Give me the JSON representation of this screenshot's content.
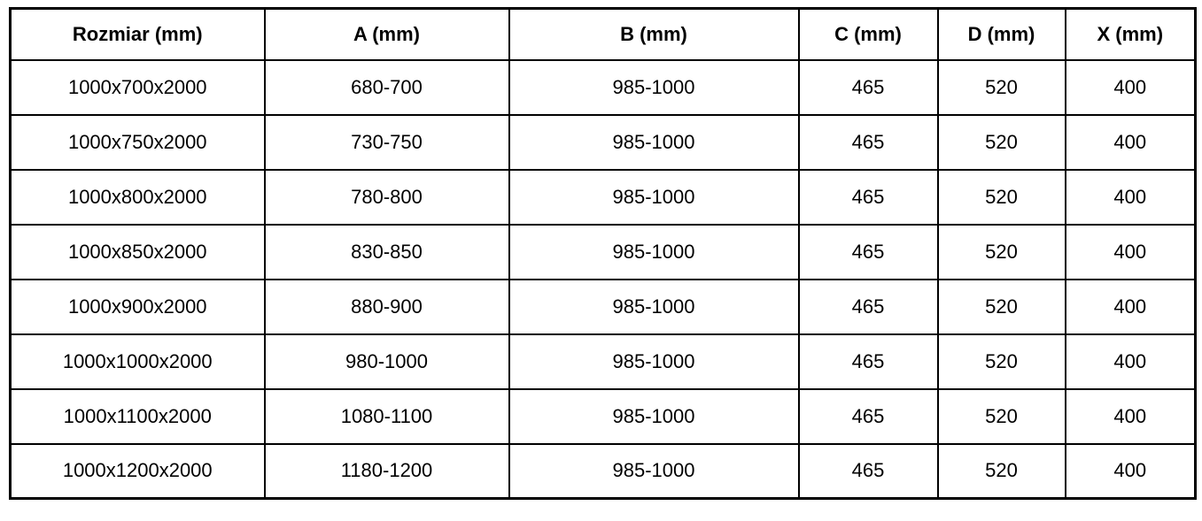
{
  "table": {
    "columns": [
      "Rozmiar (mm)",
      "A (mm)",
      "B (mm)",
      "C (mm)",
      "D (mm)",
      "X (mm)"
    ],
    "rows": [
      [
        "1000x700x2000",
        "680-700",
        "985-1000",
        "465",
        "520",
        "400"
      ],
      [
        "1000x750x2000",
        "730-750",
        "985-1000",
        "465",
        "520",
        "400"
      ],
      [
        "1000x800x2000",
        "780-800",
        "985-1000",
        "465",
        "520",
        "400"
      ],
      [
        "1000x850x2000",
        "830-850",
        "985-1000",
        "465",
        "520",
        "400"
      ],
      [
        "1000x900x2000",
        "880-900",
        "985-1000",
        "465",
        "520",
        "400"
      ],
      [
        "1000x1000x2000",
        "980-1000",
        "985-1000",
        "465",
        "520",
        "400"
      ],
      [
        "1000x1100x2000",
        "1080-1100",
        "985-1000",
        "465",
        "520",
        "400"
      ],
      [
        "1000x1200x2000",
        "1180-1200",
        "985-1000",
        "465",
        "520",
        "400"
      ]
    ],
    "colors": {
      "border": "#000000",
      "background": "#ffffff",
      "text": "#000000"
    }
  },
  "chart_data": {
    "type": "table",
    "title": "",
    "columns": [
      "Rozmiar (mm)",
      "A (mm)",
      "B (mm)",
      "C (mm)",
      "D (mm)",
      "X (mm)"
    ],
    "rows": [
      [
        "1000x700x2000",
        "680-700",
        "985-1000",
        "465",
        "520",
        "400"
      ],
      [
        "1000x750x2000",
        "730-750",
        "985-1000",
        "465",
        "520",
        "400"
      ],
      [
        "1000x800x2000",
        "780-800",
        "985-1000",
        "465",
        "520",
        "400"
      ],
      [
        "1000x850x2000",
        "830-850",
        "985-1000",
        "465",
        "520",
        "400"
      ],
      [
        "1000x900x2000",
        "880-900",
        "985-1000",
        "465",
        "520",
        "400"
      ],
      [
        "1000x1000x2000",
        "980-1000",
        "985-1000",
        "465",
        "520",
        "400"
      ],
      [
        "1000x1100x2000",
        "1080-1100",
        "985-1000",
        "465",
        "520",
        "400"
      ],
      [
        "1000x1200x2000",
        "1180-1200",
        "985-1000",
        "465",
        "520",
        "400"
      ]
    ]
  }
}
